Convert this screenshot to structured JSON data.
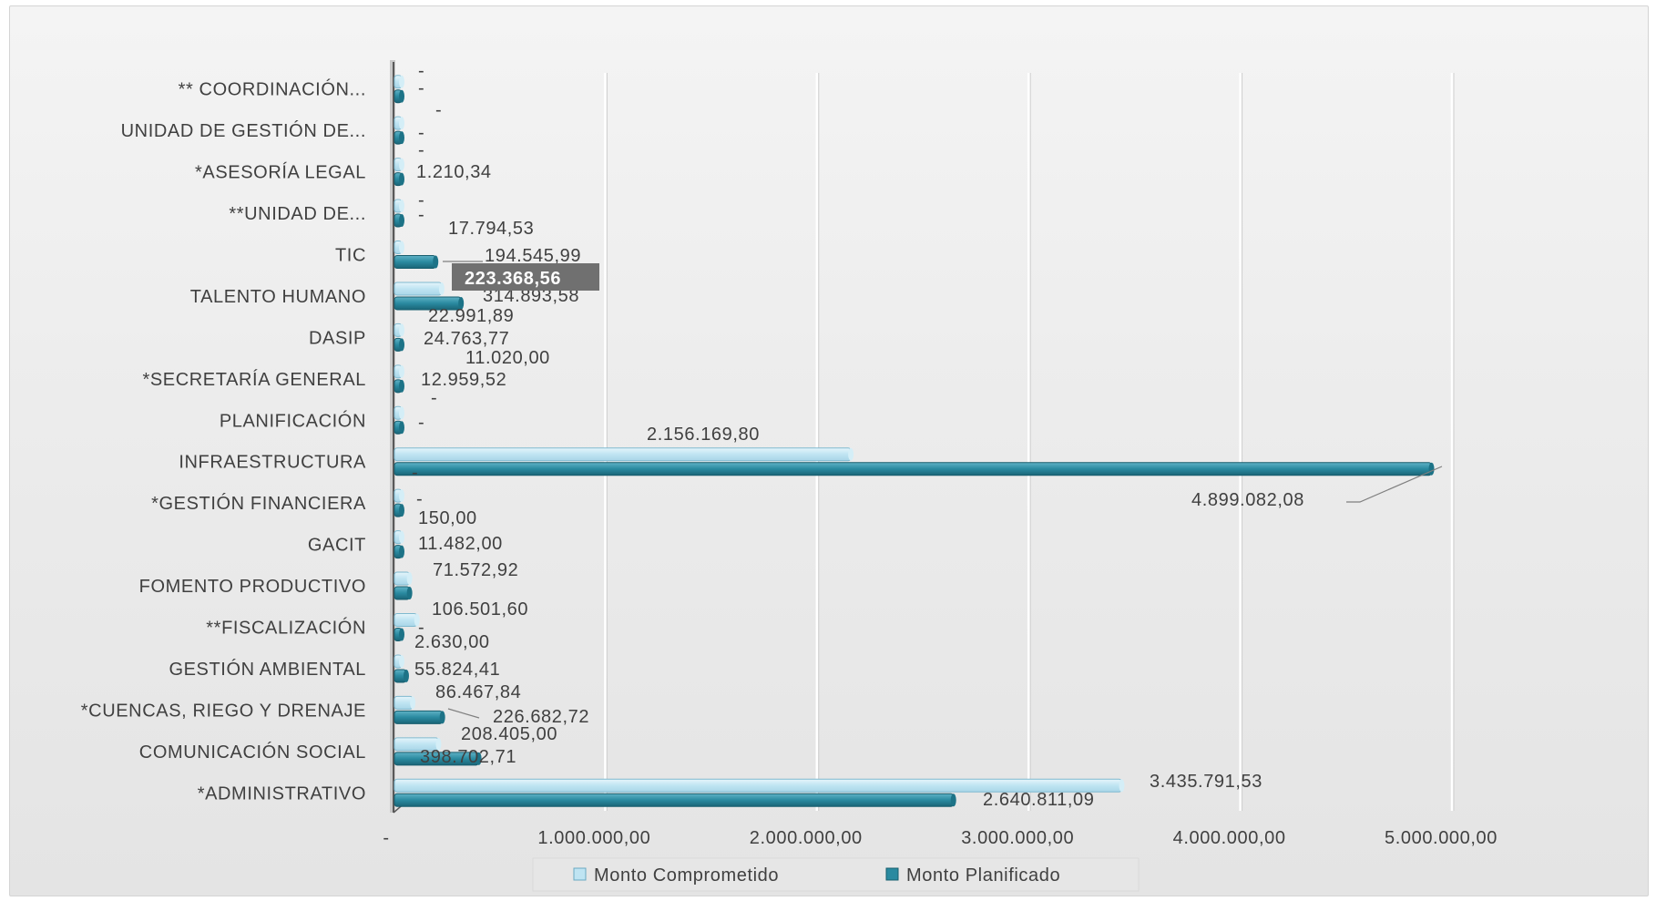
{
  "chart_data": {
    "type": "bar",
    "orientation": "horizontal",
    "categories": [
      "*ADMINISTRATIVO",
      "COMUNICACIÓN SOCIAL",
      "*CUENCAS, RIEGO Y DRENAJE",
      "GESTIÓN AMBIENTAL",
      "**FISCALIZACIÓN",
      "FOMENTO PRODUCTIVO",
      "GACIT",
      "*GESTIÓN FINANCIERA",
      "INFRAESTRUCTURA",
      "PLANIFICACIÓN",
      "*SECRETARÍA GENERAL",
      "DASIP",
      "TALENTO HUMANO",
      "TIC",
      "**UNIDAD DE...",
      "*ASESORÍA LEGAL",
      "UNIDAD DE GESTIÓN DE...",
      "** COORDINACIÓN..."
    ],
    "series": [
      {
        "name": "Monto Comprometido",
        "color": "#bfe4f2",
        "values": [
          3435791.53,
          208405.0,
          86467.84,
          2630.0,
          106501.6,
          71572.92,
          150.0,
          0,
          2156169.8,
          0,
          11020.0,
          22991.89,
          223368.56,
          17794.53,
          0,
          0,
          0,
          0
        ],
        "labels": [
          "3.435.791,53",
          "208.405,00",
          "86.467,84",
          "2.630,00",
          "106.501,60",
          "71.572,92",
          "150,00",
          "-",
          "2.156.169,80",
          "-",
          "11.020,00",
          "22.991,89",
          "223.368,56",
          "17.794,53",
          "-",
          "-",
          "-",
          "-"
        ]
      },
      {
        "name": "Monto Planificado",
        "color": "#2a8aa0",
        "values": [
          2640811.09,
          398702.71,
          226682.72,
          55824.41,
          0,
          71572.92,
          11482.0,
          0,
          4899082.08,
          0,
          12959.52,
          24763.77,
          314893.58,
          194545.99,
          0,
          1210.34,
          0,
          0
        ],
        "labels": [
          "2.640.811,09",
          "398.702,71",
          "226.682,72",
          "55.824,41",
          "-",
          "",
          "11.482,00",
          "-",
          "4.899.082,08",
          "-",
          "12.959,52",
          "24.763,77",
          "314.893,58",
          "194.545,99",
          "-",
          "1.210,34",
          "-",
          "-"
        ]
      }
    ],
    "xlim": [
      0,
      5000000
    ],
    "xticks": [
      "-",
      "1.000.000,00",
      "2.000.000,00",
      "3.000.000,00",
      "4.000.000,00",
      "5.000.000,00"
    ],
    "grid": true,
    "legend_position": "bottom",
    "highlighted_label": "223.368,56"
  },
  "colors": {
    "comprometido": "#bfe4f2",
    "planificado": "#2a8aa0",
    "highlight_box": "#707070"
  }
}
